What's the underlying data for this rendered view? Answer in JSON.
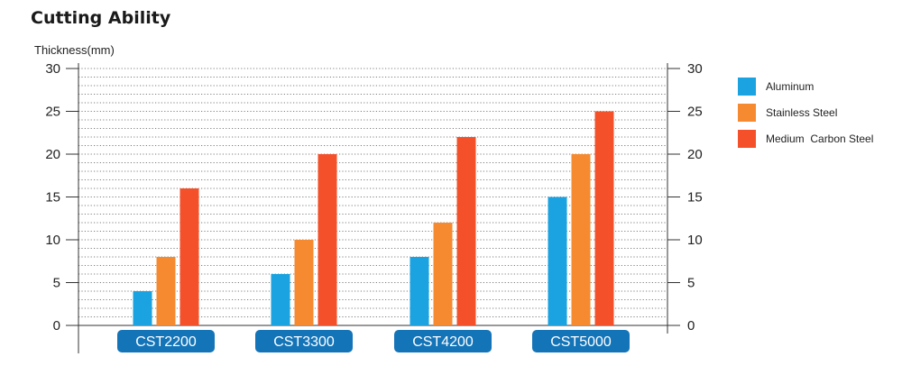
{
  "title": "Cutting Ability",
  "chart_data": {
    "type": "bar",
    "ylabel": "Thickness(mm)",
    "xlabel": "",
    "ylim": [
      0,
      30
    ],
    "yticks": [
      0,
      5,
      10,
      15,
      20,
      25,
      30
    ],
    "grid": true,
    "categories": [
      "CST2200",
      "CST3300",
      "CST4200",
      "CST5000"
    ],
    "series": [
      {
        "name": "Aluminum",
        "color": "#1aa3e0",
        "values": [
          4,
          6,
          8,
          15
        ]
      },
      {
        "name": "Stainless Steel",
        "color": "#f58a30",
        "values": [
          8,
          10,
          12,
          20
        ]
      },
      {
        "name": "Medium  Carbon Steel",
        "color": "#f4502a",
        "values": [
          16,
          20,
          22,
          25
        ]
      }
    ],
    "legend_position": "right",
    "category_label_color": "#1474b8"
  }
}
